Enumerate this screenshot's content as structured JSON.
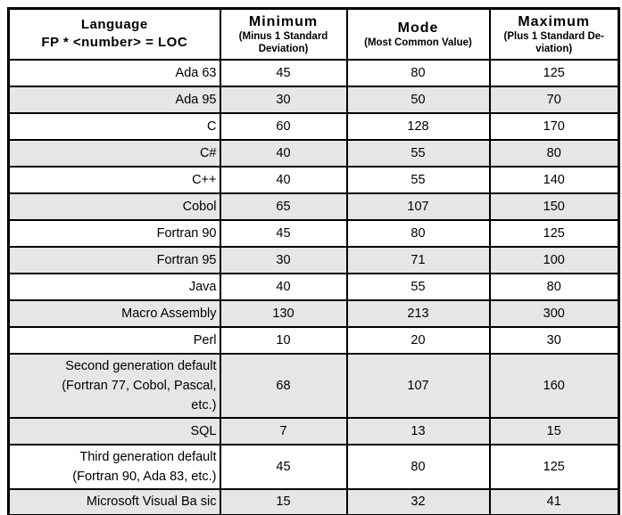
{
  "table": {
    "colors": {
      "shaded_row": "#e6e6e6",
      "row_background": "#ffffff",
      "border": "#000000",
      "text": "#000000"
    },
    "header": {
      "col1_line1": "Language",
      "col1_line2": "FP * <number> = LOC",
      "cols": [
        {
          "title": "Minimum",
          "subtitle_lines": [
            "(Minus 1 Standard",
            "Deviation)"
          ]
        },
        {
          "title": "Mode",
          "subtitle_lines": [
            "(Most Common Value)"
          ]
        },
        {
          "title": "Maximum",
          "subtitle_lines": [
            "(Plus 1 Standard De-",
            "viation)"
          ]
        }
      ]
    },
    "rows": [
      {
        "language_lines": [
          "Ada 63"
        ],
        "minimum": "45",
        "mode": "80",
        "maximum": "125",
        "shaded": false
      },
      {
        "language_lines": [
          "Ada 95"
        ],
        "minimum": "30",
        "mode": "50",
        "maximum": "70",
        "shaded": true
      },
      {
        "language_lines": [
          "C"
        ],
        "minimum": "60",
        "mode": "128",
        "maximum": "170",
        "shaded": false
      },
      {
        "language_lines": [
          "C#"
        ],
        "minimum": "40",
        "mode": "55",
        "maximum": "80",
        "shaded": true
      },
      {
        "language_lines": [
          "C++"
        ],
        "minimum": "40",
        "mode": "55",
        "maximum": "140",
        "shaded": false
      },
      {
        "language_lines": [
          "Cobol"
        ],
        "minimum": "65",
        "mode": "107",
        "maximum": "150",
        "shaded": true
      },
      {
        "language_lines": [
          "Fortran 90"
        ],
        "minimum": "45",
        "mode": "80",
        "maximum": "125",
        "shaded": false
      },
      {
        "language_lines": [
          "Fortran 95"
        ],
        "minimum": "30",
        "mode": "71",
        "maximum": "100",
        "shaded": true
      },
      {
        "language_lines": [
          "Java"
        ],
        "minimum": "40",
        "mode": "55",
        "maximum": "80",
        "shaded": false
      },
      {
        "language_lines": [
          "Macro Assembly"
        ],
        "minimum": "130",
        "mode": "213",
        "maximum": "300",
        "shaded": true
      },
      {
        "language_lines": [
          "Perl"
        ],
        "minimum": "10",
        "mode": "20",
        "maximum": "30",
        "shaded": false
      },
      {
        "language_lines": [
          "Second generation default",
          "(Fortran 77, Cobol, Pascal,",
          "etc.)"
        ],
        "minimum": "68",
        "mode": "107",
        "maximum": "160",
        "shaded": true
      },
      {
        "language_lines": [
          "SQL"
        ],
        "minimum": "7",
        "mode": "13",
        "maximum": "15",
        "shaded": true
      },
      {
        "language_lines": [
          "Third generation default",
          "(Fortran 90, Ada 83, etc.)"
        ],
        "minimum": "45",
        "mode": "80",
        "maximum": "125",
        "shaded": false
      },
      {
        "language_lines": [
          "Microsoft Visual Ba sic"
        ],
        "minimum": "15",
        "mode": "32",
        "maximum": "41",
        "shaded": true
      }
    ]
  }
}
